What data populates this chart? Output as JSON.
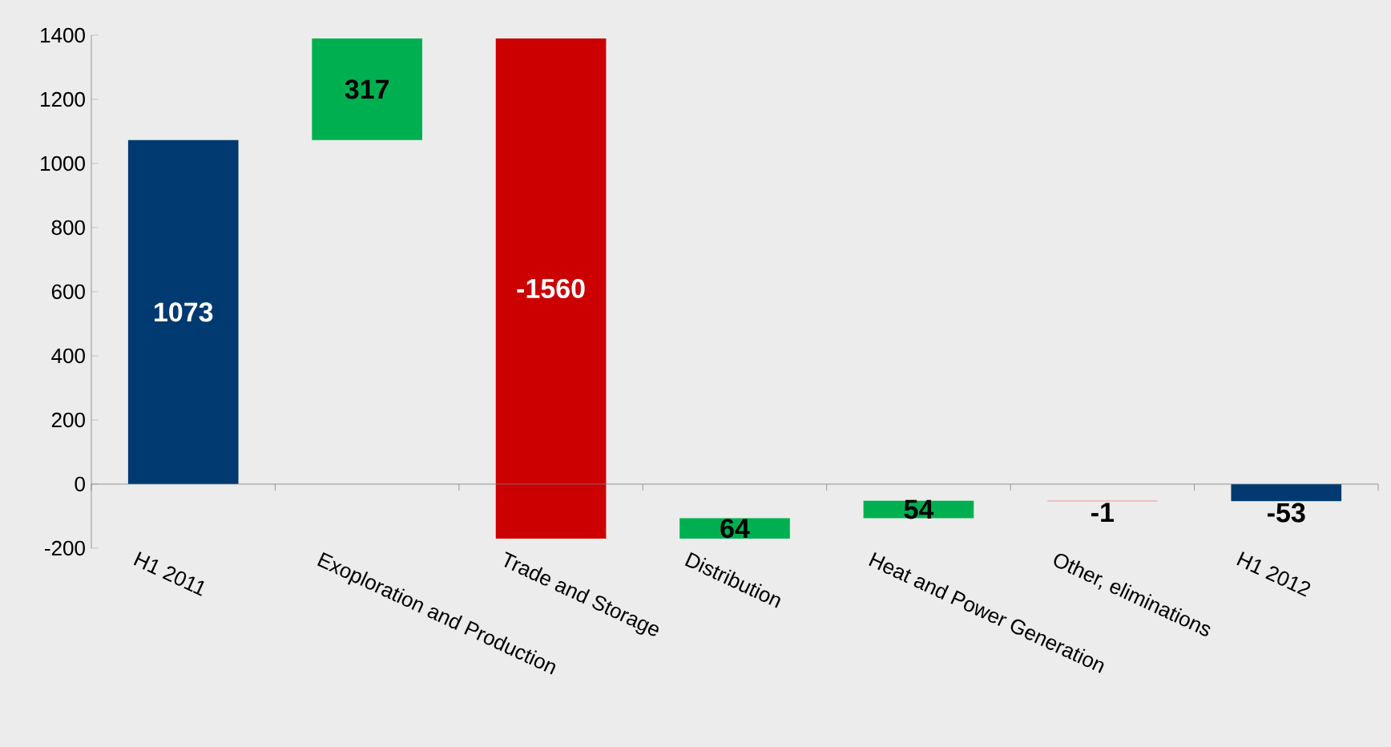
{
  "chart_data": {
    "type": "bar",
    "categories": [
      "H1 2011",
      "Exoploration and Production",
      "Trade and Storage",
      "Distribution",
      "Heat and Power Generation",
      "Other, eliminations",
      "H1 2012"
    ],
    "values": [
      1073,
      317,
      -1560,
      64,
      54,
      -1,
      -53
    ],
    "base": [
      0,
      1073,
      1390,
      -170,
      -106,
      -52,
      0
    ],
    "colors": [
      "#003a70",
      "#00b050",
      "#cc0000",
      "#00b050",
      "#00b050",
      "#e84040",
      "#003a70"
    ],
    "data_labels": true,
    "ylim": [
      -200,
      1400
    ],
    "yticks": [
      -200,
      0,
      200,
      400,
      600,
      800,
      1000,
      1200,
      1400
    ]
  }
}
